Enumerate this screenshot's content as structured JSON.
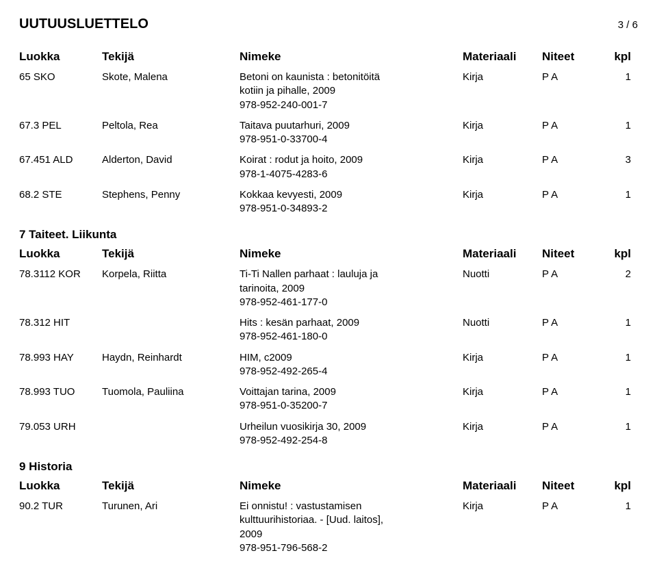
{
  "header": {
    "title": "UUTUUSLUETTELO",
    "page_current": "3",
    "page_sep": " / ",
    "page_total": "6"
  },
  "columns": {
    "luokka": "Luokka",
    "tekija": "Tekijä",
    "nimeke": "Nimeke",
    "materiaali": "Materiaali",
    "niteet": "Niteet",
    "kpl": "kpl"
  },
  "sections": [
    {
      "rows": [
        {
          "luokka": "65 SKO",
          "tekija": "Skote, Malena",
          "nimeke": "Betoni on kaunista : betonitöitä\nkotiin ja pihalle, 2009\n978-952-240-001-7",
          "materiaali": "Kirja",
          "niteet": "P A",
          "kpl": "1"
        },
        {
          "luokka": "67.3 PEL",
          "tekija": "Peltola, Rea",
          "nimeke": "Taitava puutarhuri, 2009\n978-951-0-33700-4",
          "materiaali": "Kirja",
          "niteet": "P A",
          "kpl": "1"
        },
        {
          "luokka": "67.451 ALD",
          "tekija": "Alderton, David",
          "nimeke": "Koirat : rodut ja hoito, 2009\n978-1-4075-4283-6",
          "materiaali": "Kirja",
          "niteet": "P A",
          "kpl": "3"
        },
        {
          "luokka": "68.2 STE",
          "tekija": "Stephens, Penny",
          "nimeke": "Kokkaa kevyesti, 2009\n978-951-0-34893-2",
          "materiaali": "Kirja",
          "niteet": "P A",
          "kpl": "1"
        }
      ]
    },
    {
      "title": "7 Taiteet. Liikunta",
      "rows": [
        {
          "luokka": "78.3112 KOR",
          "tekija": "Korpela, Riitta",
          "nimeke": "Ti-Ti Nallen parhaat : lauluja ja\ntarinoita, 2009\n978-952-461-177-0",
          "materiaali": "Nuotti",
          "niteet": "P A",
          "kpl": "2"
        },
        {
          "luokka": "78.312 HIT",
          "tekija": "",
          "nimeke": "Hits : kesän parhaat, 2009\n978-952-461-180-0",
          "materiaali": "Nuotti",
          "niteet": "P A",
          "kpl": "1"
        },
        {
          "luokka": "78.993 HAY",
          "tekija": "Haydn, Reinhardt",
          "nimeke": "HIM, c2009\n978-952-492-265-4",
          "materiaali": "Kirja",
          "niteet": "P A",
          "kpl": "1"
        },
        {
          "luokka": "78.993 TUO",
          "tekija": "Tuomola, Pauliina",
          "nimeke": "Voittajan tarina, 2009\n978-951-0-35200-7",
          "materiaali": "Kirja",
          "niteet": "P A",
          "kpl": "1"
        },
        {
          "luokka": "79.053 URH",
          "tekija": "",
          "nimeke": "Urheilun vuosikirja 30, 2009\n978-952-492-254-8",
          "materiaali": "Kirja",
          "niteet": "P A",
          "kpl": "1"
        }
      ]
    },
    {
      "title": "9 Historia",
      "rows": [
        {
          "luokka": "90.2 TUR",
          "tekija": "Turunen, Ari",
          "nimeke": "Ei onnistu! : vastustamisen\nkulttuurihistoriaa. - [Uud. laitos],\n2009\n978-951-796-568-2",
          "materiaali": "Kirja",
          "niteet": "P A",
          "kpl": "1"
        }
      ]
    }
  ]
}
